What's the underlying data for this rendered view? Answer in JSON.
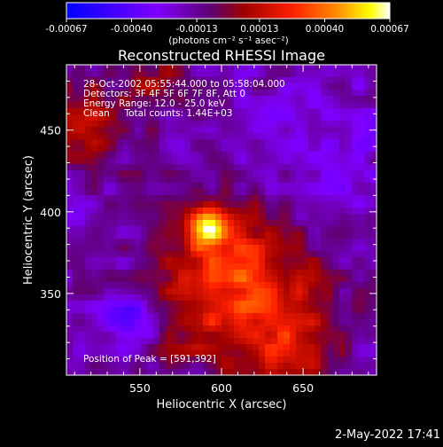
{
  "colorbar": {
    "tick_labels": [
      "-0.00067",
      "-0.00040",
      "-0.00013",
      "0.00013",
      "0.00040",
      "0.00067"
    ],
    "tick_values": [
      -0.00067,
      -0.0004,
      -0.00013,
      0.00013,
      0.0004,
      0.00067
    ],
    "range": [
      -0.00067,
      0.00067
    ],
    "units_label": "(photons cm⁻² s⁻¹ asec⁻²)",
    "colormap_stops": [
      "#0000ff",
      "#7f00ff",
      "#7f0000",
      "#ff0000",
      "#ff7f00",
      "#ffff00",
      "#ffffff"
    ]
  },
  "chart_data": {
    "type": "heatmap",
    "title": "Reconstructed RHESSI Image",
    "xlabel": "Heliocentric X (arcsec)",
    "ylabel": "Heliocentric Y (arcsec)",
    "xlim": [
      505,
      695
    ],
    "ylim": [
      300,
      490
    ],
    "x_ticks": [
      550,
      600,
      650
    ],
    "x_tick_labels": [
      "550",
      "600",
      "650"
    ],
    "y_ticks": [
      350,
      400,
      450
    ],
    "y_tick_labels": [
      "350",
      "400",
      "450"
    ],
    "peak": [
      591,
      392
    ],
    "annotations": [
      "28-Oct-2002 05:55:44.000 to 05:58:04.000",
      "Detectors: 3F 4F 5F 6F 7F 8F, Att 0",
      "Energy Range: 12.0 - 25.0 keV",
      "Clean     Total counts: 1.44E+03"
    ],
    "peak_label": "Position of Peak = [591,392]"
  },
  "footer": {
    "timestamp": "2-May-2022 17:41"
  }
}
